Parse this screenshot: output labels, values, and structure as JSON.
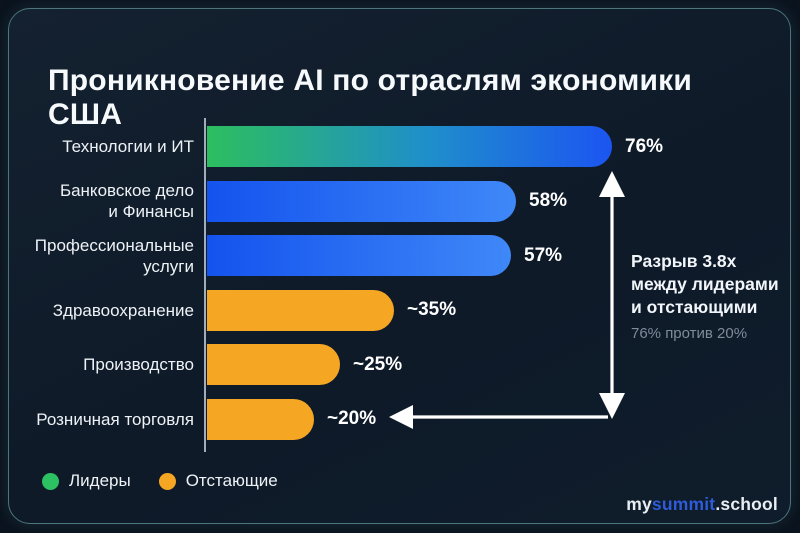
{
  "title": "Проникновение AI по отраслям экономики США",
  "chart_data": {
    "type": "bar",
    "orientation": "horizontal",
    "unit": "%",
    "xlim": [
      0,
      80
    ],
    "categories": [
      "Технологии и ИТ",
      "Банковское дело и Финансы",
      "Профессиональные услуги",
      "Здравоохранение",
      "Производство",
      "Розничная торговля"
    ],
    "label_lines": [
      [
        "Технологии и ИТ"
      ],
      [
        "Банковское дело",
        "и Финансы"
      ],
      [
        "Профессиональные",
        "услуги"
      ],
      [
        "Здравоохранение"
      ],
      [
        "Производство"
      ],
      [
        "Розничная торговля"
      ]
    ],
    "values": [
      76,
      58,
      57,
      35,
      25,
      20
    ],
    "value_labels": [
      "76%",
      "58%",
      "57%",
      "~35%",
      "~25%",
      "~20%"
    ],
    "bar_styles": [
      "leader",
      "blue",
      "blue",
      "laggard",
      "laggard",
      "laggard"
    ],
    "colors": {
      "leader_gradient": [
        "#2dbe5f",
        "#1f8ecb",
        "#1c55f2"
      ],
      "blue_gradient": [
        "#1453ee",
        "#3f88f8"
      ],
      "laggard": "#f5a623",
      "axis": "#9fadbd"
    },
    "legend_position": "bottom-left",
    "grid": false
  },
  "annotation": {
    "bold_lines": [
      "Разрыв 3.8x",
      "между лидерами",
      "и отстающими"
    ],
    "sub_line": "76% против 20%"
  },
  "legend": [
    {
      "label": "Лидеры",
      "color": "#2cc261"
    },
    {
      "label": "Отстающие",
      "color": "#f5a623"
    }
  ],
  "footer": {
    "logo_prefix": "my",
    "logo_accent": "summit",
    "logo_suffix": ".school",
    "logo_accent_color": "#2e5bd7"
  }
}
